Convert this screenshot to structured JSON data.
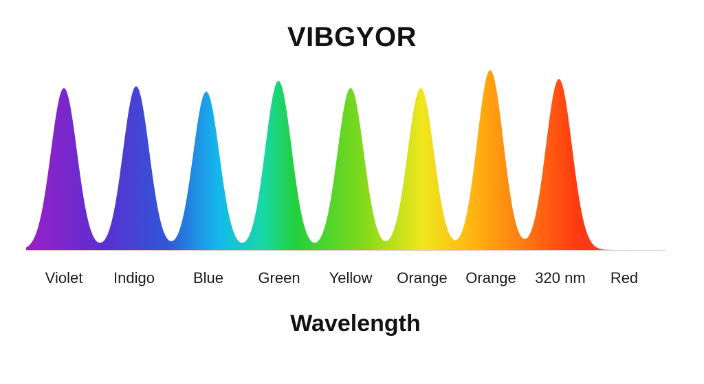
{
  "chart_data": {
    "type": "area",
    "title": "VIBGYOR",
    "xlabel": "Wavelength",
    "ylabel": "",
    "categories": [
      "Violet",
      "Indigo",
      "Blue",
      "Green",
      "Yellow",
      "Orange",
      "Orange",
      "320 nm",
      "Red"
    ],
    "peaks": [
      {
        "label": "Violet",
        "value": 0.9,
        "color": "#8a1fc4"
      },
      {
        "label": "Indigo",
        "value": 0.91,
        "color": "#3a3fcf"
      },
      {
        "label": "Blue",
        "value": 0.88,
        "color": "#18b4e8"
      },
      {
        "label": "Green",
        "value": 0.94,
        "color": "#22c93a"
      },
      {
        "label": "Yellow",
        "value": 0.9,
        "color": "#7fd81a"
      },
      {
        "label": "Orange",
        "value": 0.9,
        "color": "#f2e21a"
      },
      {
        "label": "Orange",
        "value": 1.0,
        "color": "#ff9a0e"
      },
      {
        "label": "320 nm",
        "value": 0.95,
        "color": "#ff3a12"
      }
    ],
    "grid": false,
    "legend": "none"
  }
}
